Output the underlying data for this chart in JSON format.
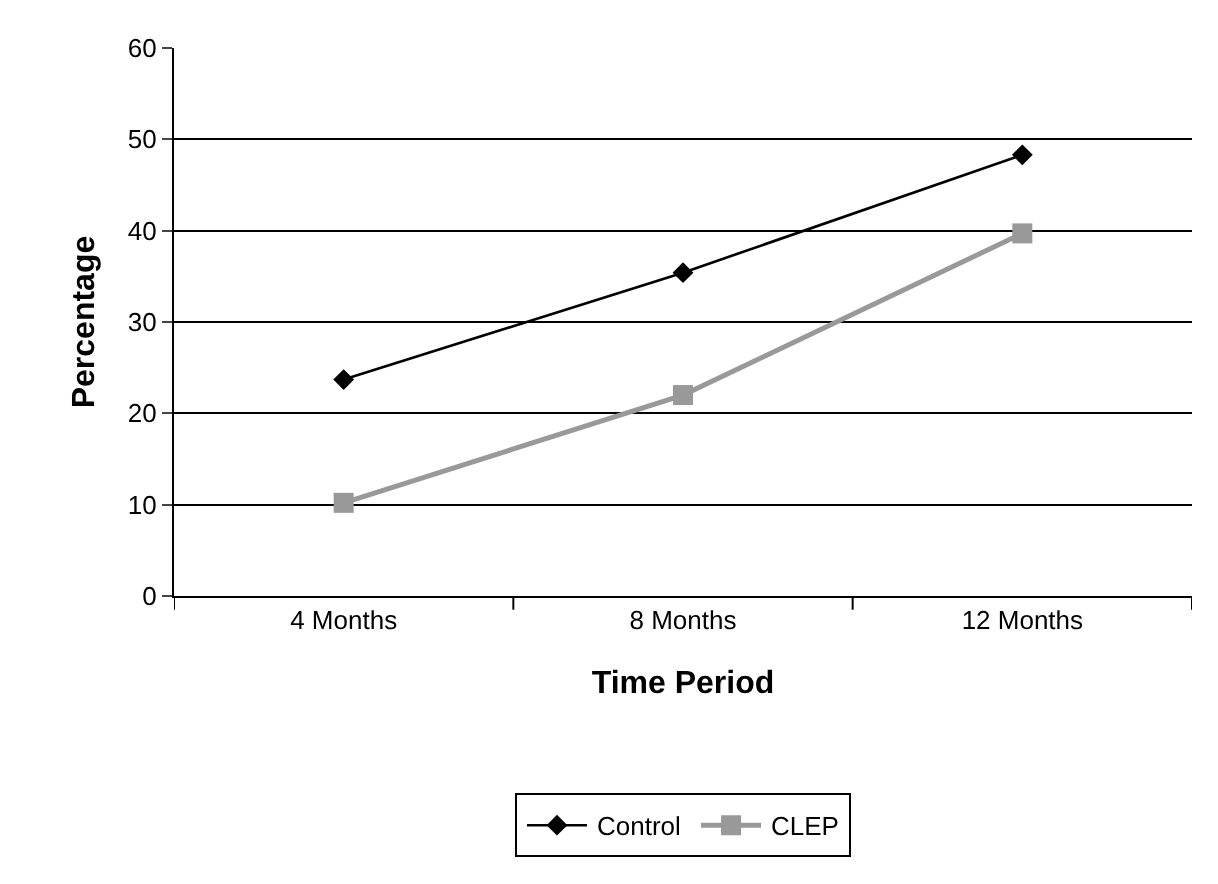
{
  "chart_data": {
    "type": "line",
    "xlabel": "Time Period",
    "ylabel": "Percentage",
    "categories": [
      "4 Months",
      "8 Months",
      "12 Months"
    ],
    "series": [
      {
        "name": "Control",
        "color": "#000000",
        "marker": "diamond",
        "values": [
          23.7,
          35.4,
          48.3
        ]
      },
      {
        "name": "CLEP",
        "color": "#999999",
        "marker": "square",
        "values": [
          10.2,
          22,
          39.7
        ]
      }
    ],
    "ylim": [
      0,
      60
    ],
    "yticks": [
      0,
      10,
      20,
      30,
      40,
      50,
      60
    ],
    "grid": "y",
    "legend": "bottom"
  }
}
